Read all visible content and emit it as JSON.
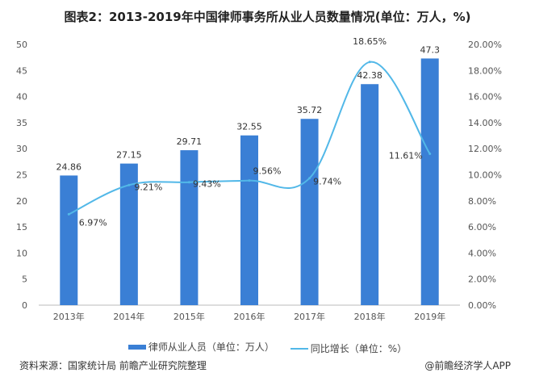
{
  "title": "图表2：2013-2019年中国律师事务所从业人员数量情况(单位：万人，%)",
  "chart_data": {
    "type": "bar+line",
    "title": "图表2：2013-2019年中国律师事务所从业人员数量情况(单位：万人，%)",
    "categories": [
      "2013年",
      "2014年",
      "2015年",
      "2016年",
      "2017年",
      "2018年",
      "2019年"
    ],
    "series": [
      {
        "name": "律师从业人员（单位：万人）",
        "type": "bar",
        "axis": "left",
        "color": "#3a7fd5",
        "values": [
          24.86,
          27.15,
          29.71,
          32.55,
          35.72,
          42.38,
          47.3
        ],
        "labels": [
          "24.86",
          "27.15",
          "29.71",
          "32.55",
          "35.72",
          "42.38",
          "47.3"
        ]
      },
      {
        "name": "同比增长（单位：%）",
        "type": "line",
        "axis": "right",
        "color": "#52b8e8",
        "values": [
          6.97,
          9.21,
          9.43,
          9.56,
          9.74,
          18.65,
          11.61
        ],
        "labels": [
          "6.97%",
          "9.21%",
          "9.43%",
          "9.56%",
          "9.74%",
          "18.65%",
          "11.61%"
        ]
      }
    ],
    "yleft": {
      "range": [
        0,
        50
      ],
      "ticks": [
        "0",
        "5",
        "10",
        "15",
        "20",
        "25",
        "30",
        "35",
        "40",
        "45",
        "50"
      ]
    },
    "yright": {
      "range": [
        0,
        20
      ],
      "ticks": [
        "0.00%",
        "2.00%",
        "4.00%",
        "6.00%",
        "8.00%",
        "10.00%",
        "12.00%",
        "14.00%",
        "16.00%",
        "18.00%",
        "20.00%"
      ]
    },
    "grid": false,
    "legend": "bottom"
  },
  "legend": {
    "bar": "律师从业人员（单位：万人）",
    "line": "同比增长（单位：%）"
  },
  "source": "资料来源：国家统计局 前瞻产业研究院整理",
  "brand": "@前瞻经济学人APP"
}
